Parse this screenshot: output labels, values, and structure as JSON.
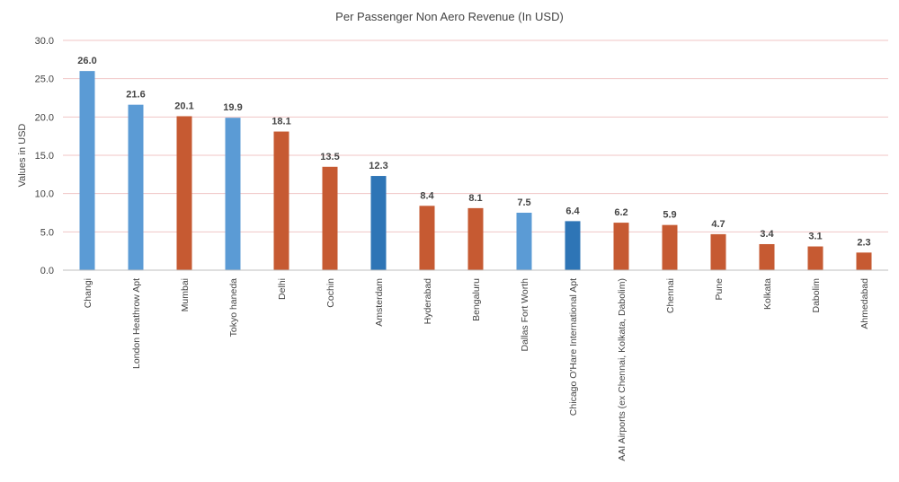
{
  "chart_data": {
    "type": "bar",
    "title": "Per Passenger Non Aero Revenue (In USD)",
    "xlabel": "",
    "ylabel": "Values in USD",
    "ylim": [
      0,
      30
    ],
    "yticks": [
      "0.0",
      "5.0",
      "10.0",
      "15.0",
      "20.0",
      "25.0",
      "30.0"
    ],
    "grid": true,
    "legend": "none",
    "categories": [
      "Changi",
      "London Heathrow Apt",
      "Mumbai",
      "Tokyo haneda",
      "Delhi",
      "Cochin",
      "Amsterdam",
      "Hyderabad",
      "Bengaluru",
      "Dallas Fort Worth",
      "Chicago O'Hare International Apt",
      "AAI Airports (ex Chennai, Kolkata, Dabolim)",
      "Chennai",
      "Pune",
      "Kolkata",
      "Dabolim",
      "Ahmedabad"
    ],
    "values": [
      26.0,
      21.6,
      20.1,
      19.9,
      18.1,
      13.5,
      12.3,
      8.4,
      8.1,
      7.5,
      6.4,
      6.2,
      5.9,
      4.7,
      3.4,
      3.1,
      2.3
    ],
    "value_labels": [
      "26.0",
      "21.6",
      "20.1",
      "19.9",
      "18.1",
      "13.5",
      "12.3",
      "8.4",
      "8.1",
      "7.5",
      "6.4",
      "6.2",
      "5.9",
      "4.7",
      "3.4",
      "3.1",
      "2.3"
    ],
    "bar_colors": [
      "#5b9bd5",
      "#5b9bd5",
      "#c65a32",
      "#5b9bd5",
      "#c65a32",
      "#c65a32",
      "#2e75b6",
      "#c65a32",
      "#c65a32",
      "#5b9bd5",
      "#2e75b6",
      "#c65a32",
      "#c65a32",
      "#c65a32",
      "#c65a32",
      "#c65a32",
      "#c65a32"
    ]
  }
}
